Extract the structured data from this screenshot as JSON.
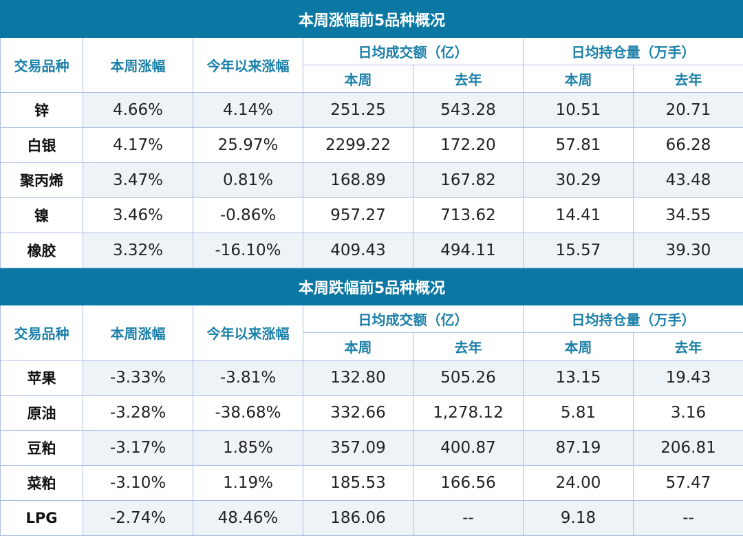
{
  "headers": {
    "variety": "交易品种",
    "week_change": "本周涨幅",
    "ytd_change": "今年以来涨幅",
    "avg_turnover": "日均成交额（亿）",
    "avg_open_interest": "日均持仓量（万手）",
    "this_week": "本周",
    "last_year": "去年"
  },
  "tables": [
    {
      "title": "本周涨幅前5品种概况",
      "rows": [
        [
          "锌",
          "4.66%",
          "4.14%",
          "251.25",
          "543.28",
          "10.51",
          "20.71"
        ],
        [
          "白银",
          "4.17%",
          "25.97%",
          "2299.22",
          "172.20",
          "57.81",
          "66.28"
        ],
        [
          "聚丙烯",
          "3.47%",
          "0.81%",
          "168.89",
          "167.82",
          "30.29",
          "43.48"
        ],
        [
          "镍",
          "3.46%",
          "-0.86%",
          "957.27",
          "713.62",
          "14.41",
          "34.55"
        ],
        [
          "橡胶",
          "3.32%",
          "-16.10%",
          "409.43",
          "494.11",
          "15.57",
          "39.30"
        ]
      ]
    },
    {
      "title": "本周跌幅前5品种概况",
      "rows": [
        [
          "苹果",
          "-3.33%",
          "-3.81%",
          "132.80",
          "505.26",
          "13.15",
          "19.43"
        ],
        [
          "原油",
          "-3.28%",
          "-38.68%",
          "332.66",
          "1,278.12",
          "5.81",
          "3.16"
        ],
        [
          "豆粕",
          "-3.17%",
          "1.85%",
          "357.09",
          "400.87",
          "87.19",
          "206.81"
        ],
        [
          "菜粕",
          "-3.10%",
          "1.19%",
          "185.53",
          "166.56",
          "24.00",
          "57.47"
        ],
        [
          "LPG",
          "-2.74%",
          "48.46%",
          "186.06",
          "--",
          "9.18",
          "--"
        ]
      ]
    }
  ]
}
